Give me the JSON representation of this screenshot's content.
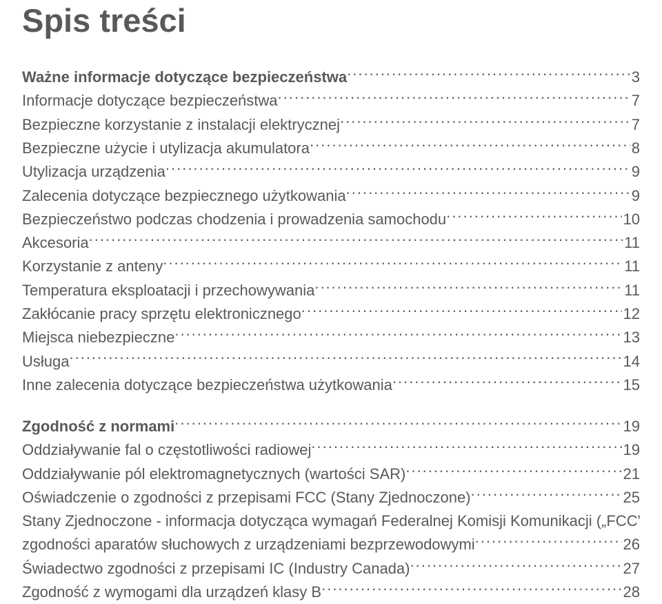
{
  "doc": {
    "title": "Spis treści",
    "text_color": "#58595b",
    "background_color": "#ffffff",
    "title_fontsize": 47,
    "body_fontsize": 22,
    "font_family": "Arial",
    "sections": [
      {
        "heading": "Ważne informacje dotyczące bezpieczeństwa",
        "heading_page": "3",
        "heading_bold": true,
        "entries": [
          {
            "label": "Informacje dotyczące bezpieczeństwa",
            "page": "7"
          },
          {
            "label": "Bezpieczne korzystanie z instalacji elektrycznej",
            "page": "7"
          },
          {
            "label": "Bezpieczne użycie i utylizacja akumulatora",
            "page": "8"
          },
          {
            "label": "Utylizacja urządzenia",
            "page": "9"
          },
          {
            "label": "Zalecenia dotyczące bezpiecznego użytkowania",
            "page": "9"
          },
          {
            "label": "Bezpieczeństwo podczas chodzenia i prowadzenia samochodu",
            "page": "10"
          },
          {
            "label": "Akcesoria",
            "page": "11"
          },
          {
            "label": "Korzystanie z anteny",
            "page": "11"
          },
          {
            "label": "Temperatura eksploatacji i przechowywania",
            "page": "11"
          },
          {
            "label": "Zakłócanie pracy sprzętu elektronicznego",
            "page": "12"
          },
          {
            "label": "Miejsca niebezpieczne",
            "page": "13"
          },
          {
            "label": "Usługa",
            "page": "14"
          },
          {
            "label": "Inne zalecenia dotyczące bezpieczeństwa użytkowania",
            "page": "15"
          }
        ]
      },
      {
        "heading": "Zgodność z normami",
        "heading_page": "19",
        "heading_bold": true,
        "entries": [
          {
            "label": "Oddziaływanie fal o częstotliwości radiowej",
            "page": "19"
          },
          {
            "label": "Oddziaływanie pól elektromagnetycznych (wartości SAR)",
            "page": "21"
          },
          {
            "label": "Oświadczenie o zgodności z przepisami FCC (Stany Zjednoczone)",
            "page": "25"
          },
          {
            "label_line1": "Stany Zjednoczone - informacja dotycząca wymagań Federalnej Komisji Komunikacji („FCC\") dot.",
            "label_line2": "zgodności aparatów słuchowych z urządzeniami bezprzewodowymi",
            "page": "26",
            "multiline": true
          },
          {
            "label": "Świadectwo zgodności z przepisami IC (Industry Canada)",
            "page": "27"
          },
          {
            "label": "Zgodność z wymogami dla urządzeń klasy B",
            "page": "28"
          }
        ]
      }
    ]
  }
}
